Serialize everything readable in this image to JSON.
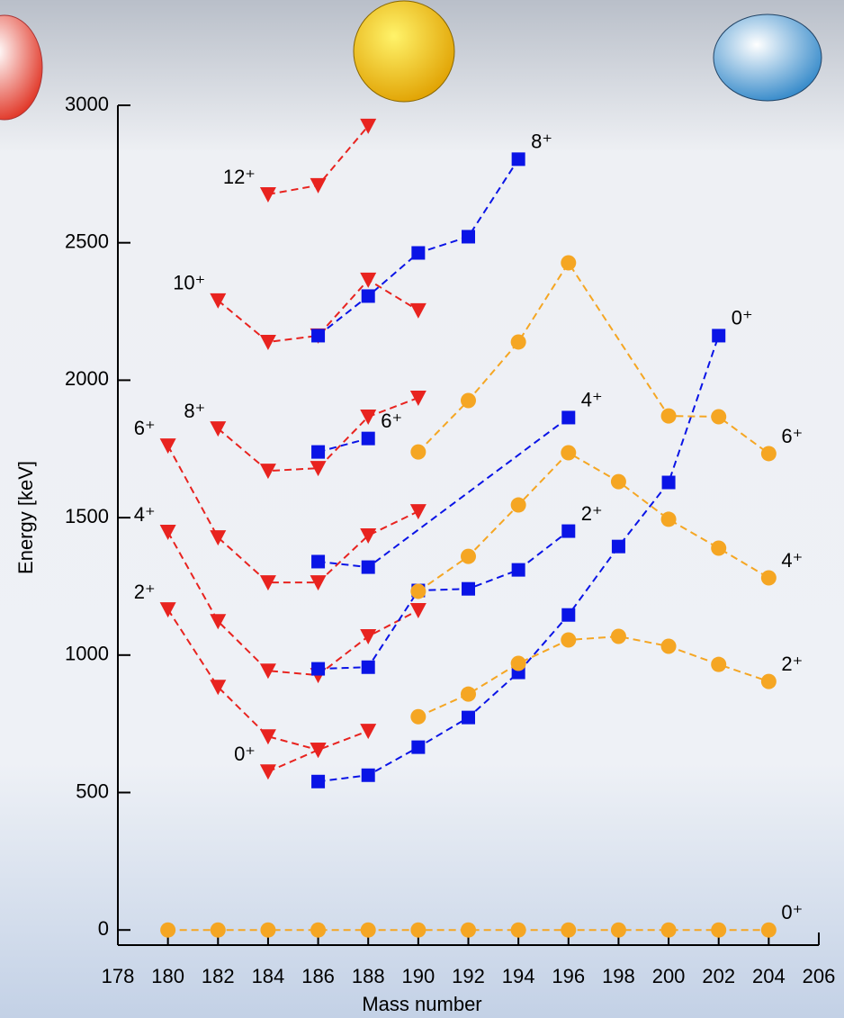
{
  "chart_data": {
    "type": "line",
    "xlabel": "Mass number",
    "ylabel": "Energy [keV]",
    "xlim": [
      178,
      206
    ],
    "xticks": [
      178,
      180,
      182,
      184,
      186,
      188,
      190,
      192,
      194,
      196,
      198,
      200,
      202,
      204,
      206
    ],
    "ylim": [
      -55,
      3000
    ],
    "yticks": [
      0,
      500,
      1000,
      1500,
      2000,
      2500,
      3000
    ],
    "series": [
      {
        "name": "0⁺",
        "color": "#e8231f",
        "marker": "triangle",
        "x": [
          184,
          186,
          188
        ],
        "values": [
          576,
          655,
          724
        ]
      },
      {
        "name": "2⁺",
        "color": "#e8231f",
        "marker": "triangle",
        "x": [
          180,
          182,
          184,
          186
        ],
        "values": [
          1166,
          884,
          704,
          655
        ]
      },
      {
        "name": "4⁺",
        "color": "#e8231f",
        "marker": "triangle",
        "x": [
          180,
          182,
          184,
          186,
          188,
          190
        ],
        "values": [
          1448,
          1123,
          943,
          927,
          1068,
          1163
        ]
      },
      {
        "name": "6⁺",
        "color": "#e8231f",
        "marker": "triangle",
        "x": [
          180,
          182,
          184,
          186,
          188,
          190
        ],
        "values": [
          1762,
          1428,
          1264,
          1264,
          1435,
          1523
        ]
      },
      {
        "name": "8⁺",
        "color": "#e8231f",
        "marker": "triangle",
        "x": [
          182,
          184,
          186,
          188,
          190
        ],
        "values": [
          1824,
          1670,
          1680,
          1867,
          1936
        ]
      },
      {
        "name": "10⁺",
        "color": "#e8231f",
        "marker": "triangle",
        "x": [
          182,
          184,
          186,
          188,
          190
        ],
        "values": [
          2290,
          2139,
          2162,
          2365,
          2254
        ]
      },
      {
        "name": "12⁺",
        "color": "#e8231f",
        "marker": "triangle",
        "x": [
          184,
          186,
          188
        ],
        "values": [
          2676,
          2709,
          2925
        ]
      },
      {
        "name": "0⁺",
        "color": "#0a14e6",
        "marker": "square",
        "x": [
          186,
          188,
          190,
          192,
          194,
          196,
          198,
          200,
          202
        ],
        "values": [
          540,
          563,
          665,
          773,
          937,
          1146,
          1395,
          1628,
          2162
        ]
      },
      {
        "name": "2⁺",
        "color": "#0a14e6",
        "marker": "square",
        "x": [
          186,
          188,
          190,
          192,
          194,
          196
        ],
        "values": [
          950,
          956,
          1235,
          1241,
          1310,
          1451
        ]
      },
      {
        "name": "4⁺",
        "color": "#0a14e6",
        "marker": "square",
        "x": [
          186,
          188,
          196
        ],
        "values": [
          1340,
          1320,
          1864
        ]
      },
      {
        "name": "6⁺",
        "color": "#0a14e6",
        "marker": "square",
        "x": [
          186,
          188
        ],
        "values": [
          1739,
          1788
        ]
      },
      {
        "name": "8⁺",
        "color": "#0a14e6",
        "marker": "square",
        "x": [
          186,
          188,
          190,
          192,
          194
        ],
        "values": [
          2162,
          2306,
          2463,
          2522,
          2804
        ]
      },
      {
        "name": "0⁺",
        "color": "#f5a623",
        "marker": "circle",
        "x": [
          180,
          182,
          184,
          186,
          188,
          190,
          192,
          194,
          196,
          198,
          200,
          202,
          204
        ],
        "values": [
          0,
          0,
          0,
          0,
          0,
          0,
          0,
          0,
          0,
          0,
          0,
          0,
          0
        ]
      },
      {
        "name": "2⁺",
        "color": "#f5a623",
        "marker": "circle",
        "x": [
          190,
          192,
          194,
          196,
          198,
          200,
          202,
          204
        ],
        "values": [
          776,
          858,
          970,
          1055,
          1068,
          1032,
          966,
          904
        ]
      },
      {
        "name": "4⁺",
        "color": "#f5a623",
        "marker": "circle",
        "x": [
          190,
          192,
          194,
          196,
          198,
          200,
          202,
          204
        ],
        "values": [
          1232,
          1359,
          1546,
          1736,
          1631,
          1494,
          1389,
          1281
        ]
      },
      {
        "name": "6⁺",
        "color": "#f5a623",
        "marker": "circle",
        "x": [
          190,
          192,
          194,
          196,
          200,
          202,
          204
        ],
        "values": [
          1739,
          1926,
          2139,
          2427,
          1870,
          1867,
          1733
        ]
      }
    ]
  }
}
